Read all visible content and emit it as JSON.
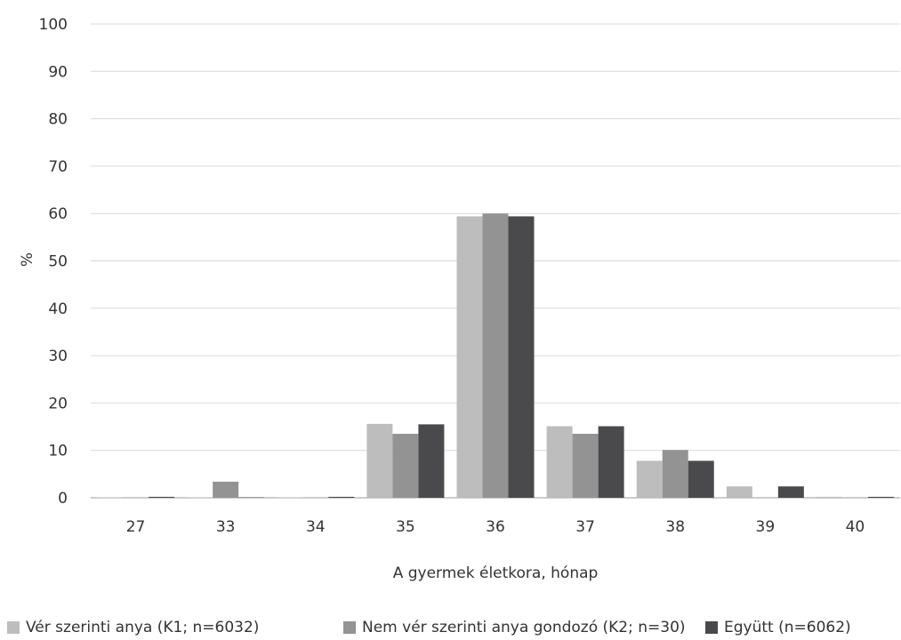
{
  "chart_data": {
    "type": "bar",
    "title": "",
    "xlabel": "A gyermek életkora, hónap",
    "ylabel": "%",
    "ylim": [
      0,
      100
    ],
    "yticks": [
      0,
      10,
      20,
      30,
      40,
      50,
      60,
      70,
      80,
      90,
      100
    ],
    "grid": "horizontal",
    "legend_position": "bottom",
    "categories": [
      "27",
      "33",
      "34",
      "35",
      "36",
      "37",
      "38",
      "39",
      "40"
    ],
    "series": [
      {
        "name": "Vér szerinti anya (K1; n=6032)",
        "color": "#bdbdbd",
        "values": [
          0.1,
          0.1,
          0.1,
          15.6,
          59.4,
          15.1,
          7.8,
          2.4,
          0.2
        ]
      },
      {
        "name": "Nem vér szerinti anya gondozó (K2; n=30)",
        "color": "#939393",
        "values": [
          0,
          3.4,
          0,
          13.5,
          60.0,
          13.5,
          10.1,
          0,
          0
        ]
      },
      {
        "name": "Együtt (n=6062)",
        "color": "#4a4a4c",
        "values": [
          0.2,
          0.1,
          0.2,
          15.5,
          59.4,
          15.1,
          7.8,
          2.4,
          0.2
        ]
      }
    ]
  }
}
